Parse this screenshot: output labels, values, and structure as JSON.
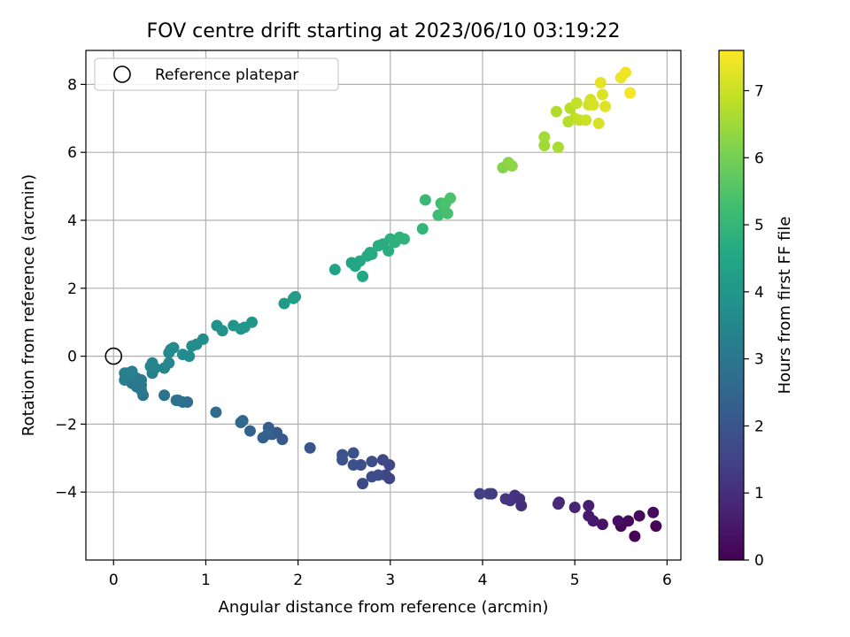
{
  "chart_data": {
    "type": "scatter",
    "title": "FOV centre drift starting at 2023/06/10 03:19:22",
    "xlabel": "Angular distance from reference (arcmin)",
    "ylabel": "Rotation from reference (arcmin)",
    "xlim": [
      -0.3,
      6.15
    ],
    "ylim": [
      -6.0,
      9.0
    ],
    "xticks": [
      "0",
      "1",
      "2",
      "3",
      "4",
      "5",
      "6"
    ],
    "yticks": [
      "−4",
      "−2",
      "0",
      "2",
      "4",
      "6",
      "8"
    ],
    "grid": true,
    "legend": {
      "placement": "upper-left",
      "entries": [
        "Reference platepar"
      ]
    },
    "colorbar": {
      "label": "Hours from first FF file",
      "colormap": "viridis",
      "range": [
        0,
        7.6
      ],
      "ticks": [
        "0",
        "1",
        "2",
        "3",
        "4",
        "5",
        "6",
        "7"
      ]
    },
    "reference_point": {
      "x": 0,
      "y": 0
    },
    "series": [
      {
        "points": [
          [
            5.65,
            -5.3,
            0.05
          ],
          [
            5.5,
            -5.0,
            0.1
          ],
          [
            5.88,
            -5.0,
            0.1
          ],
          [
            5.58,
            -4.85,
            0.2
          ],
          [
            5.7,
            -4.7,
            0.15
          ],
          [
            5.85,
            -4.6,
            0.15
          ],
          [
            5.47,
            -4.85,
            0.3
          ],
          [
            5.3,
            -4.95,
            0.4
          ],
          [
            5.2,
            -4.85,
            0.5
          ],
          [
            5.15,
            -4.7,
            0.55
          ],
          [
            5.15,
            -4.4,
            0.6
          ],
          [
            5.0,
            -4.45,
            0.75
          ],
          [
            4.83,
            -4.3,
            0.85
          ],
          [
            4.82,
            -4.35,
            0.9
          ],
          [
            4.42,
            -4.4,
            1.0
          ],
          [
            4.4,
            -4.2,
            1.05
          ],
          [
            4.35,
            -4.1,
            1.1
          ],
          [
            4.3,
            -4.25,
            1.15
          ],
          [
            4.25,
            -4.2,
            1.2
          ],
          [
            4.1,
            -4.05,
            1.3
          ],
          [
            4.07,
            -4.05,
            1.35
          ],
          [
            3.97,
            -4.05,
            1.4
          ],
          [
            2.99,
            -3.6,
            1.5
          ],
          [
            2.95,
            -3.5,
            1.55
          ],
          [
            2.99,
            -3.2,
            1.6
          ],
          [
            2.92,
            -3.05,
            1.65
          ],
          [
            2.7,
            -3.75,
            1.7
          ],
          [
            2.8,
            -3.55,
            1.75
          ],
          [
            2.87,
            -3.5,
            1.78
          ],
          [
            2.8,
            -3.1,
            1.8
          ],
          [
            2.68,
            -3.2,
            1.82
          ],
          [
            2.6,
            -3.2,
            1.85
          ],
          [
            2.6,
            -2.85,
            1.88
          ],
          [
            2.48,
            -3.05,
            1.9
          ],
          [
            2.48,
            -2.9,
            1.95
          ],
          [
            2.13,
            -2.7,
            2.0
          ],
          [
            1.83,
            -2.45,
            2.1
          ],
          [
            1.77,
            -2.25,
            2.15
          ],
          [
            1.72,
            -2.3,
            2.2
          ],
          [
            1.68,
            -2.1,
            2.25
          ],
          [
            1.62,
            -2.4,
            2.3
          ],
          [
            1.67,
            -2.3,
            2.35
          ],
          [
            1.48,
            -2.2,
            2.4
          ],
          [
            1.4,
            -1.9,
            2.5
          ],
          [
            1.38,
            -1.95,
            2.55
          ],
          [
            1.11,
            -1.65,
            2.6
          ],
          [
            0.8,
            -1.35,
            2.7
          ],
          [
            0.75,
            -1.35,
            2.75
          ],
          [
            0.7,
            -1.3,
            2.8
          ],
          [
            0.68,
            -1.3,
            2.85
          ],
          [
            0.55,
            -1.15,
            2.9
          ],
          [
            0.32,
            -1.15,
            2.95
          ],
          [
            0.3,
            -1.0,
            3.0
          ],
          [
            0.25,
            -0.9,
            3.0
          ],
          [
            0.3,
            -0.85,
            3.05
          ],
          [
            0.2,
            -0.8,
            3.05
          ],
          [
            0.3,
            -0.7,
            3.1
          ],
          [
            0.25,
            -0.65,
            3.1
          ],
          [
            0.2,
            -0.6,
            3.15
          ],
          [
            0.15,
            -0.55,
            3.15
          ],
          [
            0.12,
            -0.7,
            3.2
          ],
          [
            0.15,
            -0.5,
            3.2
          ],
          [
            0.2,
            -0.45,
            3.25
          ],
          [
            0.12,
            -0.5,
            3.25
          ],
          [
            0.42,
            -0.5,
            3.3
          ],
          [
            0.45,
            -0.35,
            3.35
          ],
          [
            0.42,
            -0.2,
            3.4
          ],
          [
            0.4,
            -0.3,
            3.4
          ],
          [
            0.55,
            -0.35,
            3.45
          ],
          [
            0.6,
            -0.2,
            3.5
          ],
          [
            0.6,
            0.1,
            3.55
          ],
          [
            0.62,
            0.2,
            3.6
          ],
          [
            0.65,
            0.25,
            3.6
          ],
          [
            0.75,
            0.05,
            3.65
          ],
          [
            0.82,
            0.0,
            3.65
          ],
          [
            0.85,
            0.3,
            3.7
          ],
          [
            0.9,
            0.35,
            3.7
          ],
          [
            0.97,
            0.5,
            3.75
          ],
          [
            1.12,
            0.9,
            3.8
          ],
          [
            1.18,
            0.75,
            3.85
          ],
          [
            1.3,
            0.9,
            3.9
          ],
          [
            1.38,
            0.8,
            3.95
          ],
          [
            1.42,
            0.85,
            3.95
          ],
          [
            1.5,
            1.0,
            4.0
          ],
          [
            1.85,
            1.55,
            4.1
          ],
          [
            1.97,
            1.75,
            4.15
          ],
          [
            1.95,
            1.7,
            4.2
          ],
          [
            2.4,
            2.55,
            4.4
          ],
          [
            2.58,
            2.75,
            4.45
          ],
          [
            2.62,
            2.65,
            4.5
          ],
          [
            2.67,
            2.8,
            4.5
          ],
          [
            2.7,
            2.35,
            4.55
          ],
          [
            2.75,
            2.95,
            4.6
          ],
          [
            2.78,
            3.05,
            4.6
          ],
          [
            2.8,
            3.0,
            4.65
          ],
          [
            2.87,
            3.25,
            4.7
          ],
          [
            2.92,
            3.3,
            4.7
          ],
          [
            2.98,
            3.1,
            4.75
          ],
          [
            3.0,
            3.45,
            4.8
          ],
          [
            3.05,
            3.35,
            4.8
          ],
          [
            3.1,
            3.5,
            4.85
          ],
          [
            3.15,
            3.45,
            4.9
          ],
          [
            3.35,
            3.75,
            4.95
          ],
          [
            3.38,
            4.6,
            5.1
          ],
          [
            3.52,
            4.15,
            5.2
          ],
          [
            3.55,
            4.5,
            5.25
          ],
          [
            3.58,
            4.4,
            5.3
          ],
          [
            3.62,
            4.2,
            5.35
          ],
          [
            3.6,
            4.5,
            5.4
          ],
          [
            3.65,
            4.65,
            5.45
          ],
          [
            4.22,
            5.55,
            6.2
          ],
          [
            4.28,
            5.7,
            6.25
          ],
          [
            4.32,
            5.6,
            6.3
          ],
          [
            4.67,
            6.2,
            6.5
          ],
          [
            4.67,
            6.45,
            6.55
          ],
          [
            4.82,
            6.15,
            6.6
          ],
          [
            4.8,
            7.2,
            6.7
          ],
          [
            4.93,
            6.9,
            6.75
          ],
          [
            4.95,
            7.3,
            6.8
          ],
          [
            5.0,
            7.0,
            6.85
          ],
          [
            5.02,
            7.45,
            6.9
          ],
          [
            5.05,
            6.95,
            6.95
          ],
          [
            5.12,
            6.95,
            7.0
          ],
          [
            5.15,
            7.4,
            7.05
          ],
          [
            5.17,
            7.55,
            7.1
          ],
          [
            5.2,
            7.4,
            7.15
          ],
          [
            5.26,
            6.85,
            7.15
          ],
          [
            5.3,
            7.7,
            7.2
          ],
          [
            5.33,
            7.35,
            7.25
          ],
          [
            5.28,
            8.05,
            7.3
          ],
          [
            5.5,
            8.2,
            7.4
          ],
          [
            5.55,
            8.35,
            7.45
          ],
          [
            5.6,
            7.75,
            7.5
          ]
        ]
      }
    ]
  }
}
